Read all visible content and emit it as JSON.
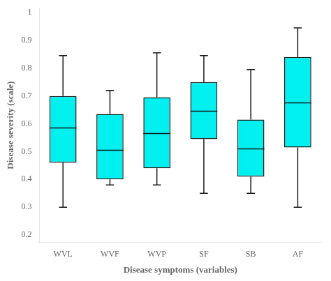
{
  "chart_data": {
    "type": "box",
    "xlabel": "Disease symptoms (variables)",
    "ylabel": "Disease severity (scale)",
    "categories": [
      "WVL",
      "WVF",
      "WVP",
      "SF",
      "SB",
      "AF"
    ],
    "boxes": [
      {
        "whislo": 0.3,
        "q1": 0.46,
        "med": 0.585,
        "q3": 0.7,
        "whishi": 0.845
      },
      {
        "whislo": 0.38,
        "q1": 0.4,
        "med": 0.505,
        "q3": 0.635,
        "whishi": 0.72
      },
      {
        "whislo": 0.38,
        "q1": 0.44,
        "med": 0.565,
        "q3": 0.695,
        "whishi": 0.855
      },
      {
        "whislo": 0.35,
        "q1": 0.545,
        "med": 0.645,
        "q3": 0.75,
        "whishi": 0.845
      },
      {
        "whislo": 0.35,
        "q1": 0.41,
        "med": 0.51,
        "q3": 0.615,
        "whishi": 0.795
      },
      {
        "whislo": 0.3,
        "q1": 0.515,
        "med": 0.675,
        "q3": 0.84,
        "whishi": 0.945
      }
    ],
    "color": "#00EFEF",
    "ylim": [
      0.175,
      1.015
    ],
    "yticks": [
      0.2,
      0.3,
      0.4,
      0.5,
      0.6,
      0.7,
      0.8,
      0.9,
      1
    ],
    "grid": false
  }
}
